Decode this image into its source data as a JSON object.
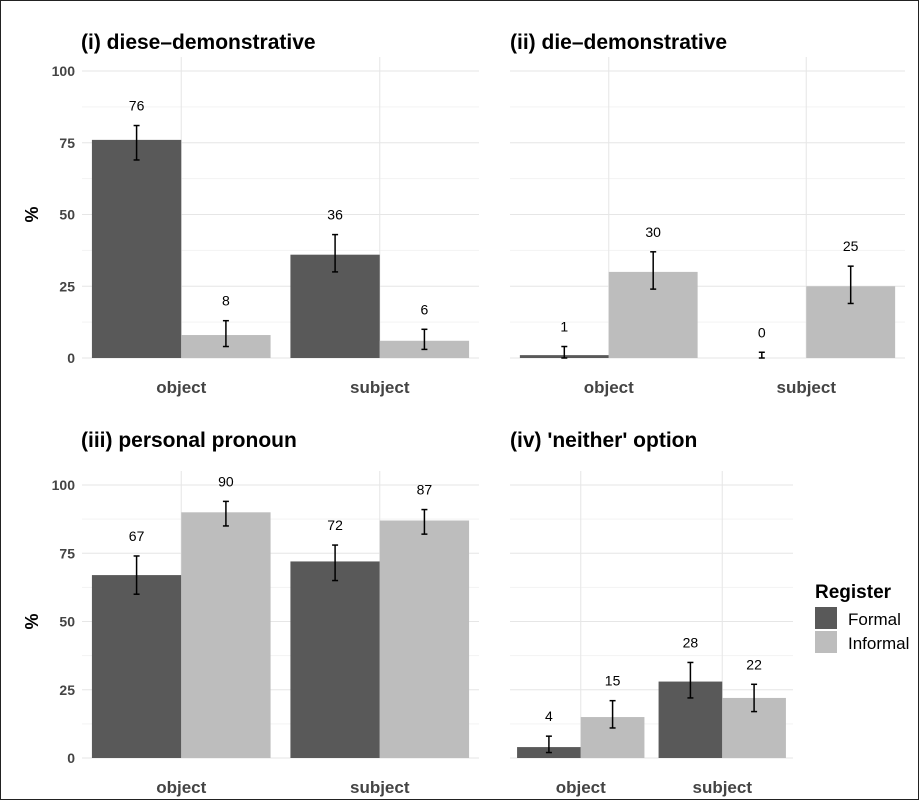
{
  "chart_data": [
    {
      "type": "bar",
      "title": "(i) diese–demonstrative",
      "ylabel": "%",
      "categories": [
        "object",
        "subject"
      ],
      "ylim": [
        0,
        100
      ],
      "yticks": [
        0,
        25,
        50,
        75,
        100
      ],
      "series": [
        {
          "name": "Formal",
          "values": [
            76,
            36
          ],
          "ci_low": [
            69,
            30
          ],
          "ci_high": [
            81,
            43
          ]
        },
        {
          "name": "Informal",
          "values": [
            8,
            6
          ],
          "ci_low": [
            4,
            3
          ],
          "ci_high": [
            13,
            10
          ]
        }
      ]
    },
    {
      "type": "bar",
      "title": "(ii) die–demonstrative",
      "ylabel": "",
      "categories": [
        "object",
        "subject"
      ],
      "ylim": [
        0,
        100
      ],
      "yticks": [],
      "series": [
        {
          "name": "Formal",
          "values": [
            1,
            0
          ],
          "ci_low": [
            0,
            0
          ],
          "ci_high": [
            4,
            2
          ]
        },
        {
          "name": "Informal",
          "values": [
            30,
            25
          ],
          "ci_low": [
            24,
            19
          ],
          "ci_high": [
            37,
            32
          ]
        }
      ]
    },
    {
      "type": "bar",
      "title": "(iii) personal pronoun",
      "ylabel": "%",
      "categories": [
        "object",
        "subject"
      ],
      "ylim": [
        0,
        100
      ],
      "yticks": [
        0,
        25,
        50,
        75,
        100
      ],
      "series": [
        {
          "name": "Formal",
          "values": [
            67,
            72
          ],
          "ci_low": [
            60,
            65
          ],
          "ci_high": [
            74,
            78
          ]
        },
        {
          "name": "Informal",
          "values": [
            90,
            87
          ],
          "ci_low": [
            85,
            82
          ],
          "ci_high": [
            94,
            91
          ]
        }
      ]
    },
    {
      "type": "bar",
      "title": "(iv) 'neither' option",
      "ylabel": "",
      "categories": [
        "object",
        "subject"
      ],
      "ylim": [
        0,
        100
      ],
      "yticks": [],
      "series": [
        {
          "name": "Formal",
          "values": [
            4,
            28
          ],
          "ci_low": [
            2,
            22
          ],
          "ci_high": [
            8,
            35
          ]
        },
        {
          "name": "Informal",
          "values": [
            15,
            22
          ],
          "ci_low": [
            11,
            17
          ],
          "ci_high": [
            21,
            27
          ]
        }
      ]
    }
  ],
  "legend": {
    "title": "Register",
    "position": "right",
    "items": [
      {
        "label": "Formal",
        "color": "#595959"
      },
      {
        "label": "Informal",
        "color": "#bdbdbd"
      }
    ]
  },
  "colors": {
    "Formal": "#595959",
    "Informal": "#bdbdbd"
  }
}
